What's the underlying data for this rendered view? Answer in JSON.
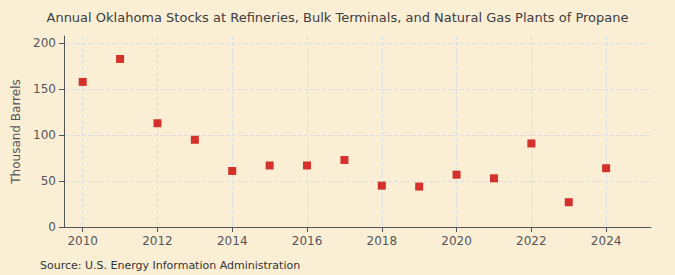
{
  "chart_data": {
    "type": "scatter",
    "title": "Annual Oklahoma Stocks at Refineries, Bulk Terminals, and Natural Gas Plants of Propane",
    "ylabel": "Thousand Barrels",
    "annotations": [
      "Source: U.S. Energy Information Administration"
    ],
    "x": [
      2010,
      2011,
      2012,
      2013,
      2014,
      2015,
      2016,
      2017,
      2018,
      2019,
      2020,
      2021,
      2022,
      2023,
      2024
    ],
    "values": [
      158,
      183,
      113,
      95,
      61,
      67,
      67,
      73,
      45,
      44,
      57,
      53,
      91,
      27,
      64
    ],
    "color": "#cc0000",
    "marker": "square",
    "xlim": [
      2009.5,
      2025.2
    ],
    "ylim": [
      0,
      208
    ],
    "xticks": [
      2010,
      2012,
      2014,
      2016,
      2018,
      2020,
      2022,
      2024
    ],
    "yticks": [
      0,
      50,
      100,
      150,
      200
    ],
    "grid": true
  }
}
